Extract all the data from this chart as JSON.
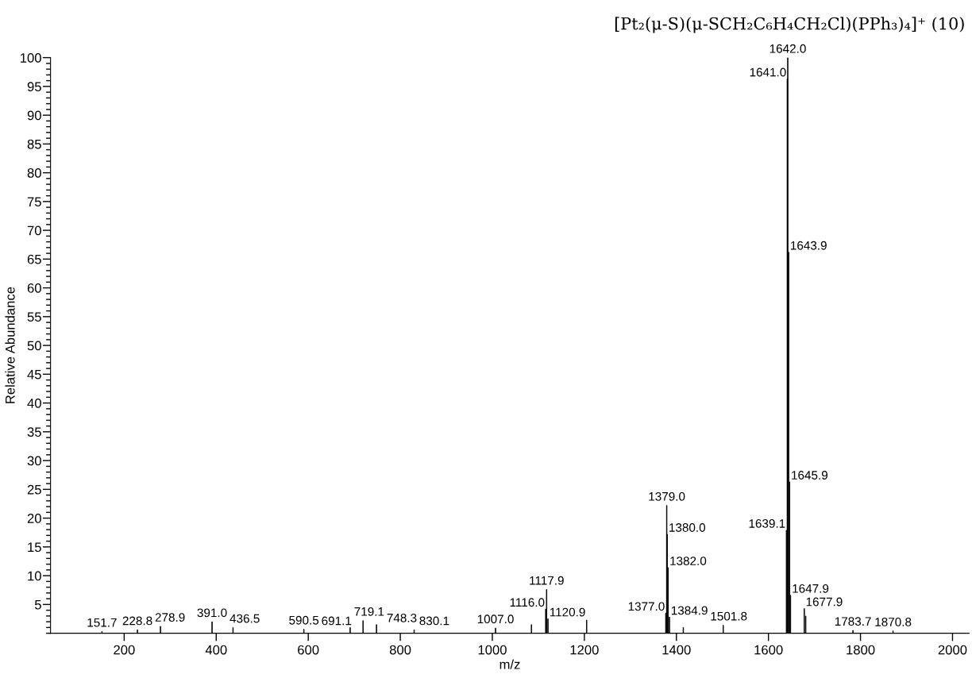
{
  "chart_data": {
    "type": "bar",
    "title": "[Pt₂(μ-S)(μ-SCH₂C₆H₄CH₂Cl)(PPh₃)₄]⁺ (10)",
    "xlabel": "m/z",
    "ylabel": "Relative Abundance",
    "x": [
      151.7,
      228.8,
      278.9,
      391.0,
      436.5,
      590.5,
      691.1,
      719.1,
      748.3,
      830.1,
      1007.0,
      1085,
      1116.0,
      1117.9,
      1120.9,
      1205,
      1377.0,
      1379.0,
      1380.0,
      1382.0,
      1384.9,
      1415,
      1501.8,
      1639.1,
      1641.0,
      1642.0,
      1643.9,
      1645.9,
      1647.9,
      1677.9,
      1681,
      1783.7,
      1870.8
    ],
    "values": [
      0.3,
      0.6,
      1.2,
      2.0,
      1.0,
      0.7,
      1.0,
      2.2,
      1.5,
      0.6,
      0.9,
      1.5,
      4.2,
      7.6,
      2.5,
      2.3,
      3.5,
      22.2,
      17.2,
      11.4,
      2.8,
      1.0,
      1.4,
      17.9,
      96.3,
      100,
      66.2,
      26.3,
      6.6,
      4.3,
      3.0,
      0.5,
      0.4
    ],
    "annotations": [
      {
        "text": "151.7",
        "x": 151.7,
        "y": 0.3
      },
      {
        "text": "228.8",
        "x": 228.8,
        "y": 0.6
      },
      {
        "text": "278.9",
        "x": 278.9,
        "y": 1.2
      },
      {
        "text": "391.0",
        "x": 391.0,
        "y": 2.0
      },
      {
        "text": "436.5",
        "x": 436.5,
        "y": 1.0
      },
      {
        "text": "590.5",
        "x": 590.5,
        "y": 0.7
      },
      {
        "text": "691.1",
        "x": 691.1,
        "y": 1.0
      },
      {
        "text": "719.1",
        "x": 719.1,
        "y": 2.2
      },
      {
        "text": "748.3",
        "x": 748.3,
        "y": 1.5
      },
      {
        "text": "830.1",
        "x": 830.1,
        "y": 0.6
      },
      {
        "text": "1007.0",
        "x": 1007.0,
        "y": 0.9
      },
      {
        "text": "1116.0",
        "x": 1116.0,
        "y": 4.2
      },
      {
        "text": "1117.9",
        "x": 1117.9,
        "y": 7.6
      },
      {
        "text": "1120.9",
        "x": 1120.9,
        "y": 2.5
      },
      {
        "text": "1377.0",
        "x": 1377.0,
        "y": 3.5
      },
      {
        "text": "1379.0",
        "x": 1379.0,
        "y": 22.2
      },
      {
        "text": "1380.0",
        "x": 1380.0,
        "y": 17.2
      },
      {
        "text": "1382.0",
        "x": 1382.0,
        "y": 11.4
      },
      {
        "text": "1384.9",
        "x": 1384.9,
        "y": 2.8
      },
      {
        "text": "1501.8",
        "x": 1501.8,
        "y": 1.4
      },
      {
        "text": "1639.1",
        "x": 1639.1,
        "y": 17.9
      },
      {
        "text": "1641.0",
        "x": 1641.0,
        "y": 96.3
      },
      {
        "text": "1642.0",
        "x": 1642.0,
        "y": 100
      },
      {
        "text": "1643.9",
        "x": 1643.9,
        "y": 66.2
      },
      {
        "text": "1645.9",
        "x": 1645.9,
        "y": 26.3
      },
      {
        "text": "1647.9",
        "x": 1647.9,
        "y": 6.6
      },
      {
        "text": "1677.9",
        "x": 1677.9,
        "y": 4.3
      },
      {
        "text": "1783.7",
        "x": 1783.7,
        "y": 0.5
      },
      {
        "text": "1870.8",
        "x": 1870.8,
        "y": 0.4
      }
    ],
    "color": "#000000",
    "xlim": [
      40,
      2036
    ],
    "xticks": [
      200,
      400,
      600,
      800,
      1000,
      1200,
      1400,
      1600,
      1800,
      2000
    ],
    "ylim": [
      0,
      100
    ],
    "yticks": [
      5,
      10,
      15,
      20,
      25,
      30,
      35,
      40,
      45,
      50,
      55,
      60,
      65,
      70,
      75,
      80,
      85,
      90,
      95,
      100
    ],
    "grid": false
  }
}
